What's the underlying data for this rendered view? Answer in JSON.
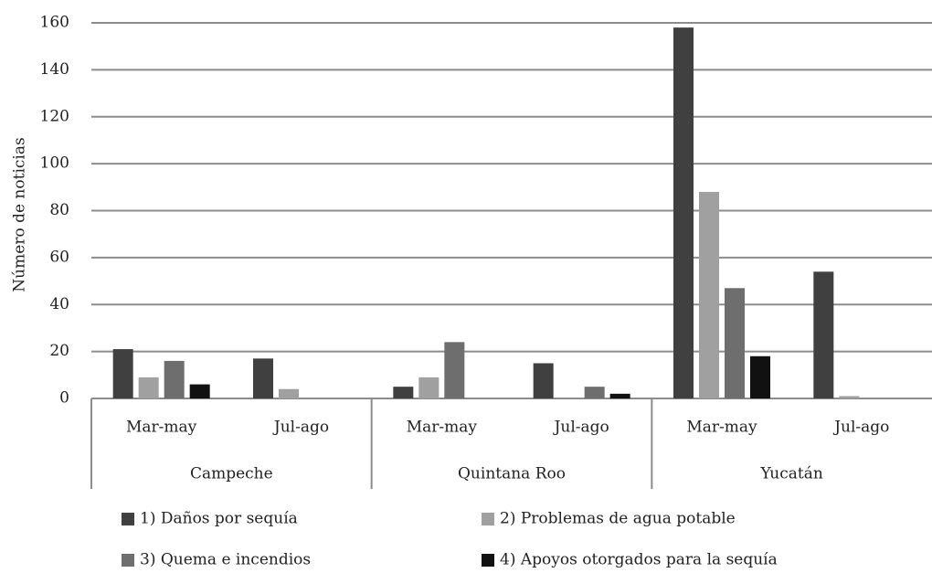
{
  "chart_data": {
    "type": "bar",
    "y_label": "Número de noticias",
    "groups": [
      "Campeche",
      "Quintana Roo",
      "Yucatán"
    ],
    "categories": [
      "Mar-may",
      "Jul-ago",
      "Mar-may",
      "Jul-ago",
      "Mar-may",
      "Jul-ago"
    ],
    "series": [
      {
        "name": "1) Daños por sequía",
        "color": "#404040",
        "values": [
          21,
          17,
          5,
          15,
          158,
          54
        ]
      },
      {
        "name": "2) Problemas de agua potable",
        "color": "#a0a0a0",
        "values": [
          9,
          4,
          9,
          0,
          88,
          1
        ]
      },
      {
        "name": "3) Quema e incendios",
        "color": "#6e6e6e",
        "values": [
          16,
          0,
          24,
          5,
          47,
          0
        ]
      },
      {
        "name": "4) Apoyos otorgados para la sequía",
        "color": "#111111",
        "values": [
          6,
          0,
          0,
          2,
          18,
          0
        ]
      }
    ],
    "ylim": [
      0,
      160
    ],
    "yticks": [
      0,
      20,
      40,
      60,
      80,
      100,
      120,
      140,
      160
    ],
    "grid": true
  }
}
